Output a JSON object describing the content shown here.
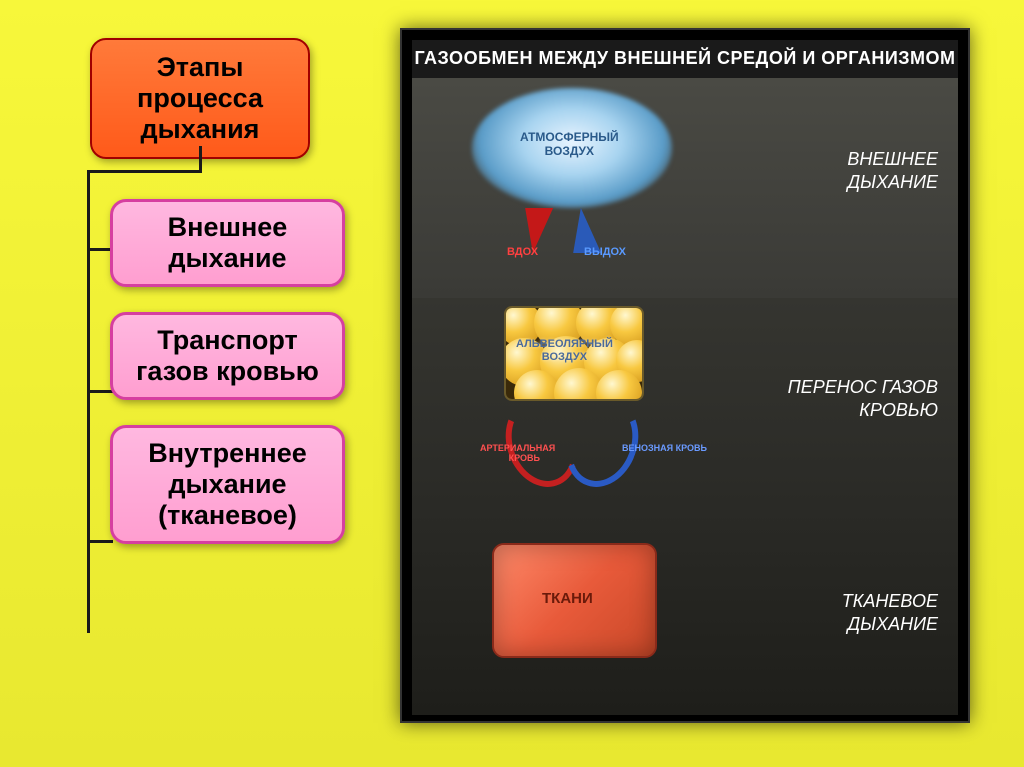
{
  "page": {
    "background_gradient": [
      "#f7f73a",
      "#e8e830"
    ]
  },
  "left_diagram": {
    "main": {
      "text": "Этапы процесса дыхания",
      "bg_gradient": [
        "#ff7a3a",
        "#ff5a1a"
      ],
      "border_color": "#a00000",
      "text_color": "#000000",
      "font_size_pt": 20,
      "border_radius": 16
    },
    "children": [
      {
        "text": "Внешнее дыхание"
      },
      {
        "text": "Транспорт газов кровью"
      },
      {
        "text": "Внутреннее дыхание (тканевое)"
      }
    ],
    "child_style": {
      "bg_gradient": [
        "#ffb8e0",
        "#ff9ed0"
      ],
      "border_color": "#d63fa0",
      "text_color": "#000000",
      "font_size_pt": 20,
      "border_radius": 16
    },
    "connector_color": "#1a1a1a"
  },
  "right_panel": {
    "title": "ГАЗООБМЕН МЕЖДУ ВНЕШНЕЙ СРЕДОЙ И ОРГАНИЗМОМ",
    "bg_color": "#000000",
    "inner_bg": "#1a1a1a",
    "title_color": "#ffffff",
    "sections": [
      {
        "label": "ВНЕШНЕЕ\nДЫХАНИЕ",
        "bg_gradient": [
          "#4a4a44",
          "#3a3a36"
        ],
        "cloud": {
          "label": "АТМОСФЕРНЫЙ\nВОЗДУХ",
          "label_color": "#2a5a8a",
          "gradient": [
            "#e8f4ff",
            "#a8d4f0",
            "#5a9cc8"
          ]
        },
        "arrows": {
          "inhale": {
            "text": "ВДОХ",
            "color": "#c41818"
          },
          "exhale": {
            "text": "ВЫДОХ",
            "color": "#2a5ab8"
          }
        }
      },
      {
        "label": "ПЕРЕНОС ГАЗОВ\nКРОВЬЮ",
        "bg_gradient": [
          "#353530",
          "#2a2a26"
        ],
        "alveolar": {
          "label": "АЛЬВЕОЛЯРНЫЙ\nВОЗДУХ",
          "label_color": "#4a6a9a",
          "bubble_gradient": [
            "#fff8d0",
            "#f8c840",
            "#c88a10"
          ],
          "border_color": "#6a5a2a"
        },
        "blood": {
          "arterial": {
            "text": "АРТЕРИАЛЬНАЯ КРОВЬ",
            "color": "#c42020"
          },
          "venous": {
            "text": "ВЕНОЗНАЯ КРОВЬ",
            "color": "#2a5ac4"
          }
        }
      },
      {
        "label": "ТКАНЕВОЕ\nДЫХАНИЕ",
        "bg_gradient": [
          "#2a2a26",
          "#1e1e1a"
        ],
        "tissue": {
          "label": "ТКАНИ",
          "bg_gradient": [
            "#ff8a6a",
            "#e85a3a",
            "#c84828"
          ],
          "border_color": "#8a2a1a",
          "label_color": "#6a1a0a"
        }
      }
    ],
    "label_color": "#ffffff",
    "label_font_style": "italic"
  }
}
